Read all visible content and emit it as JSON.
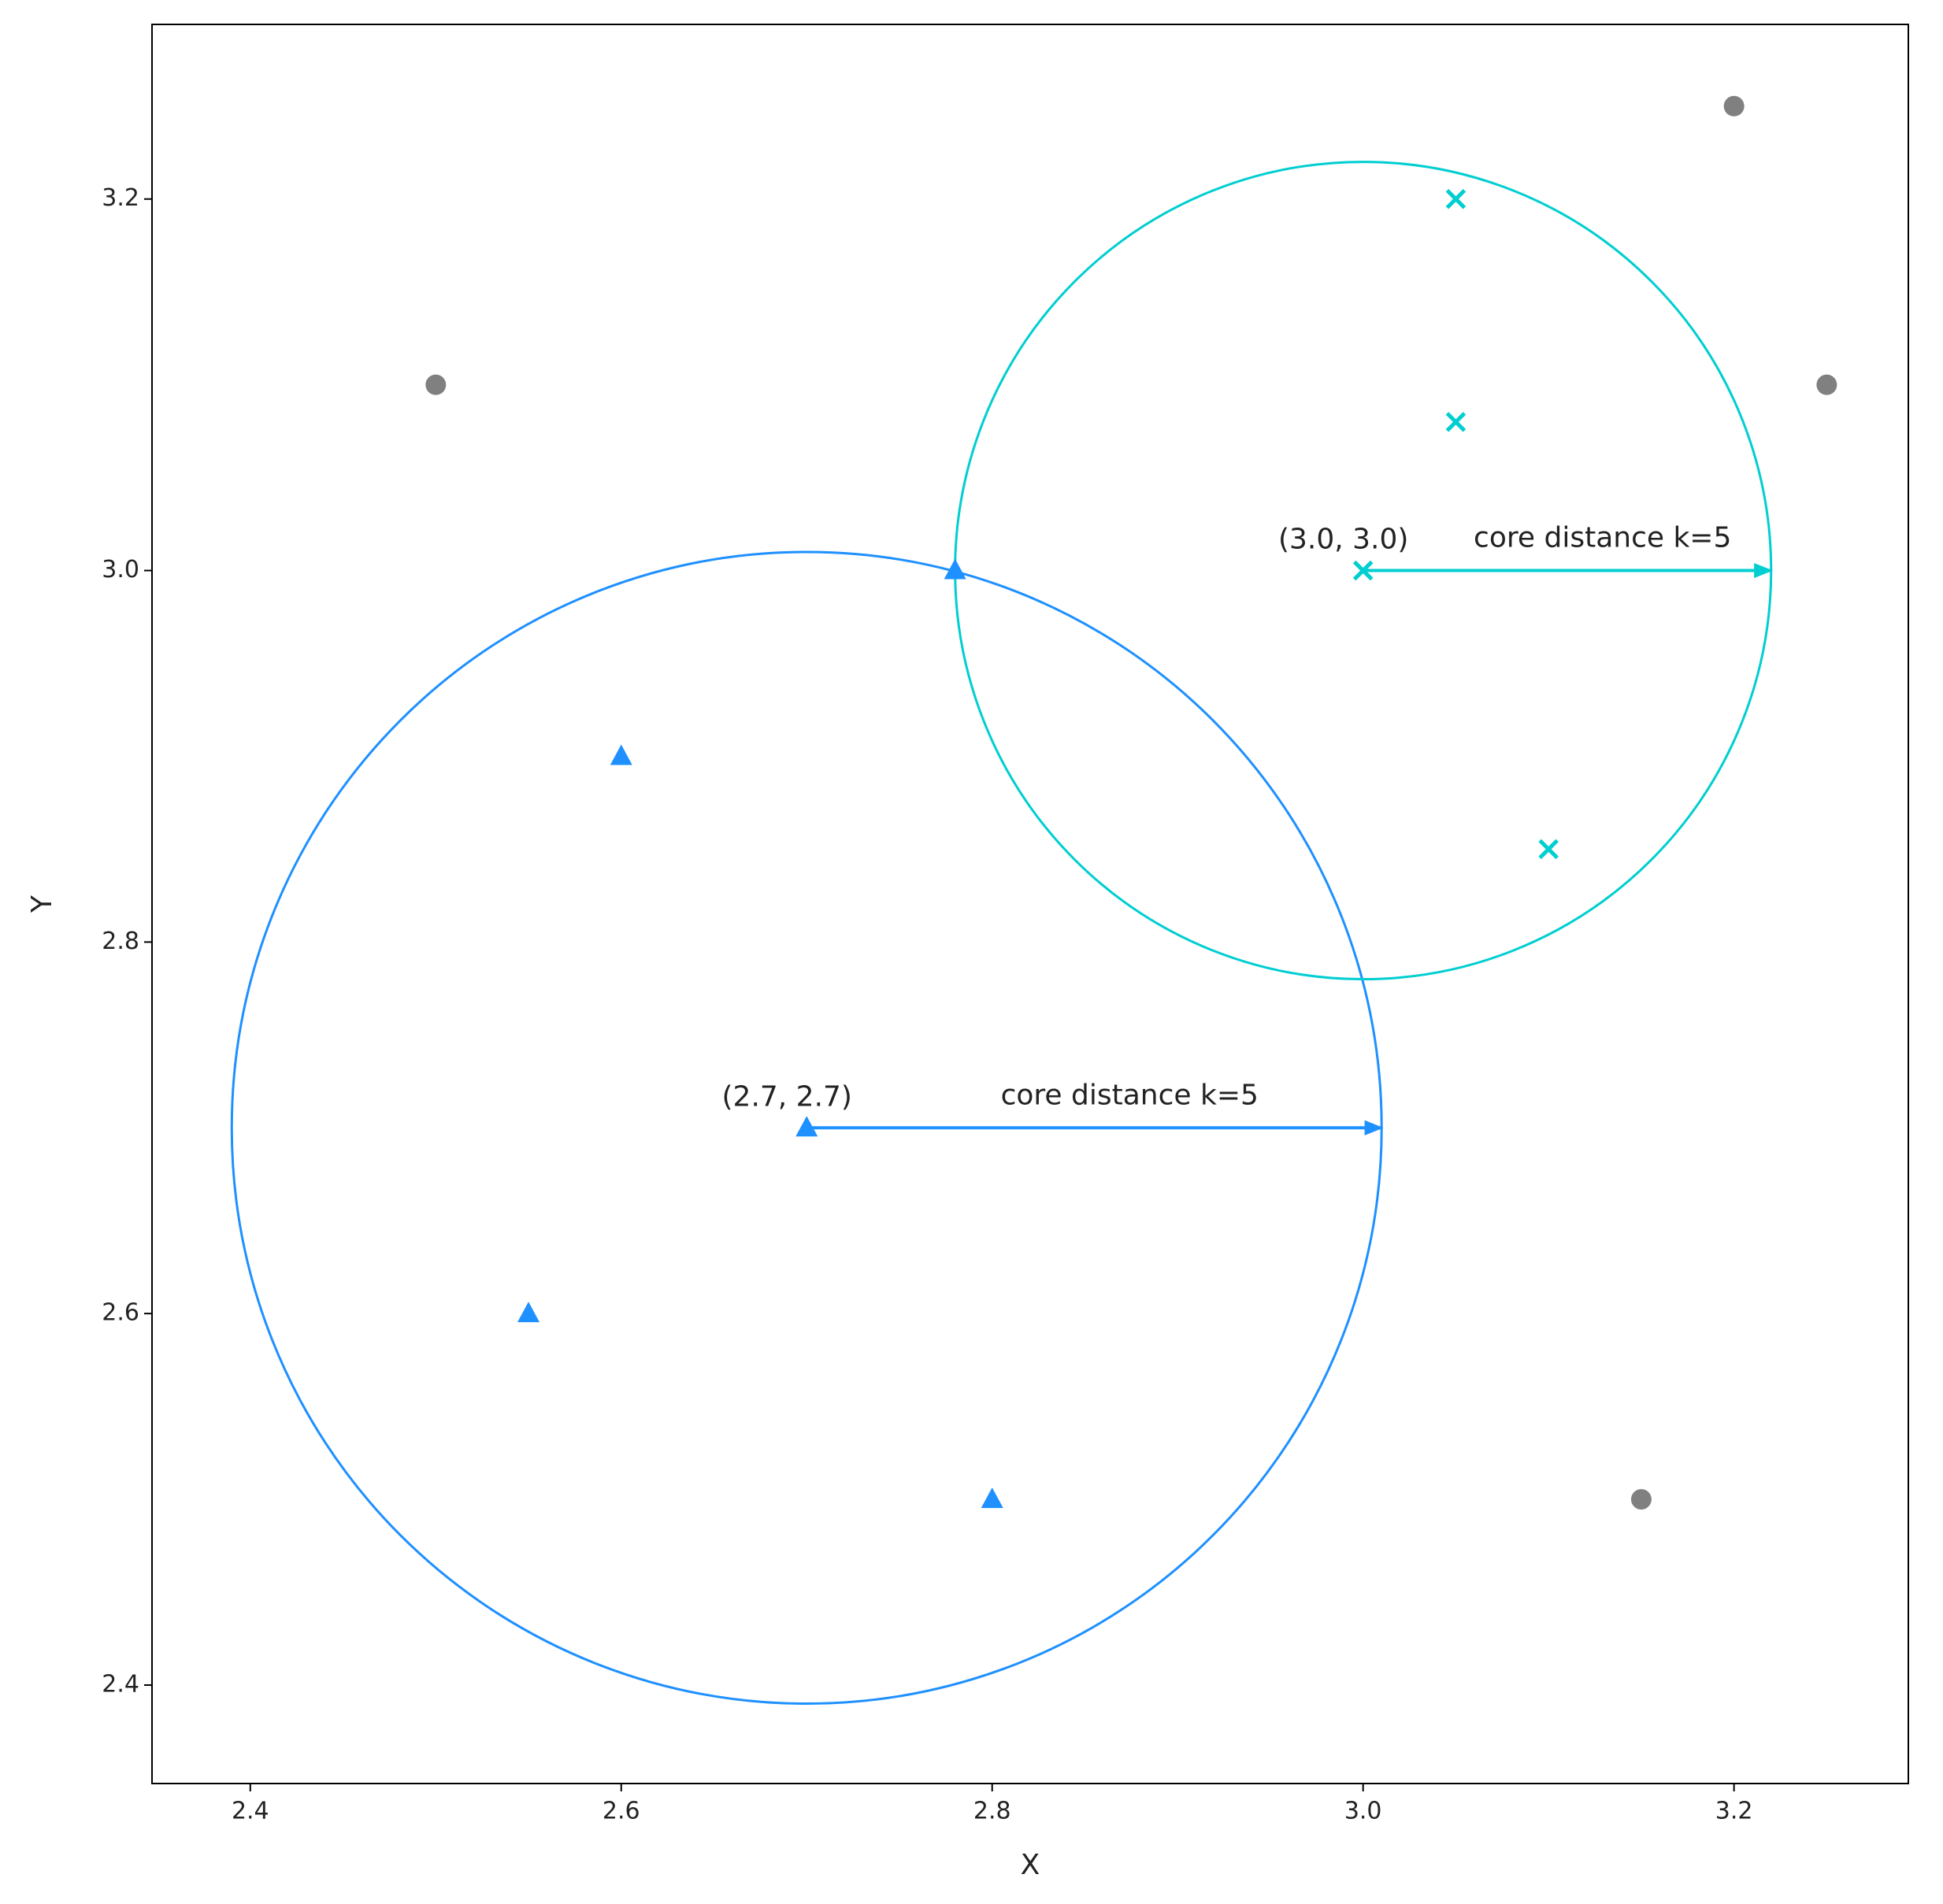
{
  "chart_data": {
    "type": "scatter",
    "xlabel": "X",
    "ylabel": "Y",
    "xlim": [
      2.347,
      3.294
    ],
    "ylim": [
      2.347,
      3.294
    ],
    "xticks": [
      2.4,
      2.6,
      2.8,
      {
        "value": 3.0,
        "label": "3.0"
      },
      3.2
    ],
    "yticks": [
      2.4,
      2.6,
      2.8,
      {
        "value": 3.0,
        "label": "3.0"
      },
      3.2
    ],
    "grid": false,
    "series": [
      {
        "color": "#808080",
        "marker": "circle",
        "x": [
          2.5,
          3.2,
          3.25,
          3.15
        ],
        "values": [
          3.1,
          3.25,
          3.1,
          2.5
        ]
      },
      {
        "color": "#1e90ff",
        "marker": "triangle",
        "x": [
          2.6,
          2.55,
          2.8,
          2.7,
          2.78
        ],
        "values": [
          2.9,
          2.6,
          2.5,
          2.7,
          3.0
        ]
      },
      {
        "color": "#00ced1",
        "marker": "x",
        "x": [
          3.05,
          3.05,
          3.0,
          3.1
        ],
        "values": [
          3.2,
          3.08,
          3.0,
          2.85
        ]
      }
    ],
    "circles": [
      {
        "center": [
          2.7,
          2.7
        ],
        "radius": 0.31,
        "color": "#1e90ff",
        "label": "(2.7, 2.7)",
        "annotation": "core distance k=5"
      },
      {
        "center": [
          3.0,
          3.0
        ],
        "radius": 0.22,
        "color": "#00ced1",
        "label": "(3.0, 3.0)",
        "annotation": "core distance k=5"
      }
    ]
  }
}
